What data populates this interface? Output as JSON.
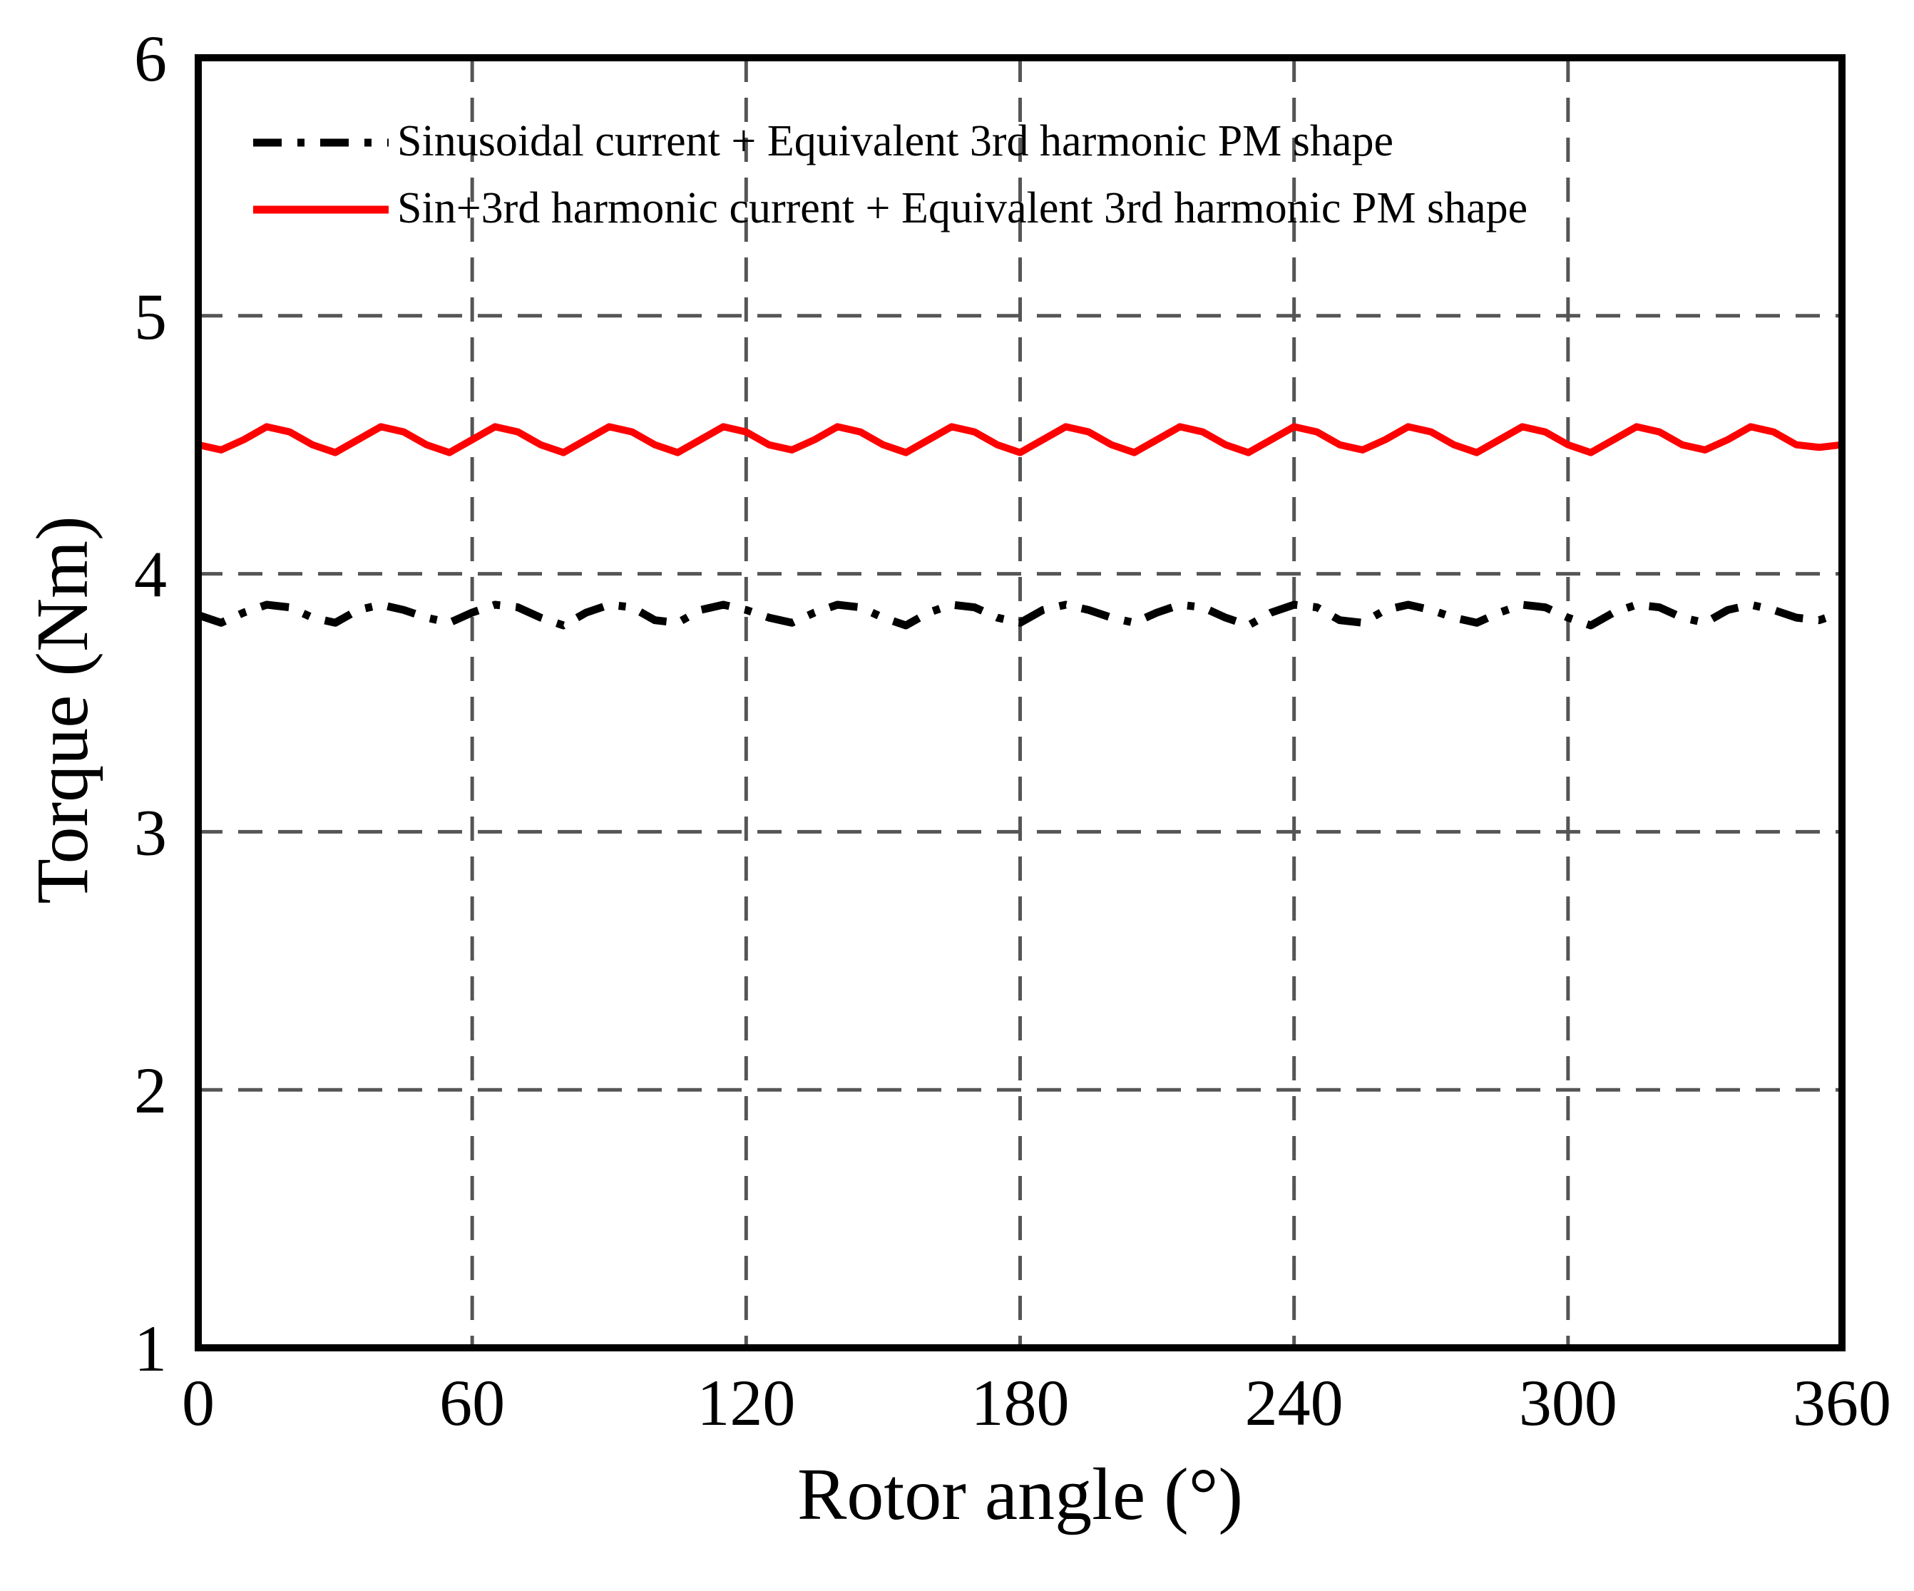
{
  "chart_data": {
    "type": "line",
    "title": "",
    "xlabel": "Rotor angle (°)",
    "ylabel": "Torque (Nm)",
    "xlim": [
      0,
      360
    ],
    "ylim": [
      1,
      6
    ],
    "xticks": [
      "0",
      "60",
      "120",
      "180",
      "240",
      "300",
      "360"
    ],
    "yticks": [
      "1",
      "2",
      "3",
      "4",
      "5",
      "6"
    ],
    "grid": true,
    "legend_position": "top-left",
    "series": [
      {
        "name": "Sinusoidal current + Equivalent 3rd harmonic PM shape",
        "color": "#000000",
        "style": "dash-dot",
        "x": [
          0,
          5,
          10,
          15,
          20,
          25,
          30,
          35,
          40,
          45,
          50,
          55,
          60,
          65,
          70,
          75,
          80,
          85,
          90,
          95,
          100,
          105,
          110,
          115,
          120,
          125,
          130,
          135,
          140,
          145,
          150,
          155,
          160,
          165,
          170,
          175,
          180,
          185,
          190,
          195,
          200,
          205,
          210,
          215,
          220,
          225,
          230,
          235,
          240,
          245,
          250,
          255,
          260,
          265,
          270,
          275,
          280,
          285,
          290,
          295,
          300,
          305,
          310,
          315,
          320,
          325,
          330,
          335,
          340,
          345,
          350,
          355,
          360
        ],
        "y": [
          3.84,
          3.81,
          3.85,
          3.88,
          3.87,
          3.83,
          3.81,
          3.86,
          3.88,
          3.86,
          3.83,
          3.81,
          3.85,
          3.88,
          3.87,
          3.83,
          3.8,
          3.85,
          3.88,
          3.87,
          3.82,
          3.81,
          3.86,
          3.88,
          3.86,
          3.83,
          3.81,
          3.85,
          3.88,
          3.87,
          3.83,
          3.8,
          3.85,
          3.88,
          3.87,
          3.83,
          3.81,
          3.86,
          3.88,
          3.86,
          3.83,
          3.81,
          3.85,
          3.88,
          3.87,
          3.83,
          3.8,
          3.85,
          3.88,
          3.87,
          3.82,
          3.81,
          3.86,
          3.88,
          3.86,
          3.83,
          3.81,
          3.85,
          3.88,
          3.87,
          3.83,
          3.8,
          3.85,
          3.88,
          3.87,
          3.83,
          3.81,
          3.86,
          3.88,
          3.86,
          3.83,
          3.82,
          3.85
        ]
      },
      {
        "name": "Sin+3rd harmonic current + Equivalent 3rd harmonic PM shape",
        "color": "#ff0000",
        "style": "solid",
        "x": [
          0,
          5,
          10,
          15,
          20,
          25,
          30,
          35,
          40,
          45,
          50,
          55,
          60,
          65,
          70,
          75,
          80,
          85,
          90,
          95,
          100,
          105,
          110,
          115,
          120,
          125,
          130,
          135,
          140,
          145,
          150,
          155,
          160,
          165,
          170,
          175,
          180,
          185,
          190,
          195,
          200,
          205,
          210,
          215,
          220,
          225,
          230,
          235,
          240,
          245,
          250,
          255,
          260,
          265,
          270,
          275,
          280,
          285,
          290,
          295,
          300,
          305,
          310,
          315,
          320,
          325,
          330,
          335,
          340,
          345,
          350,
          355,
          360
        ],
        "y": [
          4.5,
          4.48,
          4.52,
          4.57,
          4.55,
          4.5,
          4.47,
          4.52,
          4.57,
          4.55,
          4.5,
          4.47,
          4.52,
          4.57,
          4.55,
          4.5,
          4.47,
          4.52,
          4.57,
          4.55,
          4.5,
          4.47,
          4.52,
          4.57,
          4.55,
          4.5,
          4.48,
          4.52,
          4.57,
          4.55,
          4.5,
          4.47,
          4.52,
          4.57,
          4.55,
          4.5,
          4.47,
          4.52,
          4.57,
          4.55,
          4.5,
          4.47,
          4.52,
          4.57,
          4.55,
          4.5,
          4.47,
          4.52,
          4.57,
          4.55,
          4.5,
          4.48,
          4.52,
          4.57,
          4.55,
          4.5,
          4.47,
          4.52,
          4.57,
          4.55,
          4.5,
          4.47,
          4.52,
          4.57,
          4.55,
          4.5,
          4.48,
          4.52,
          4.57,
          4.55,
          4.5,
          4.49,
          4.5
        ]
      }
    ]
  }
}
